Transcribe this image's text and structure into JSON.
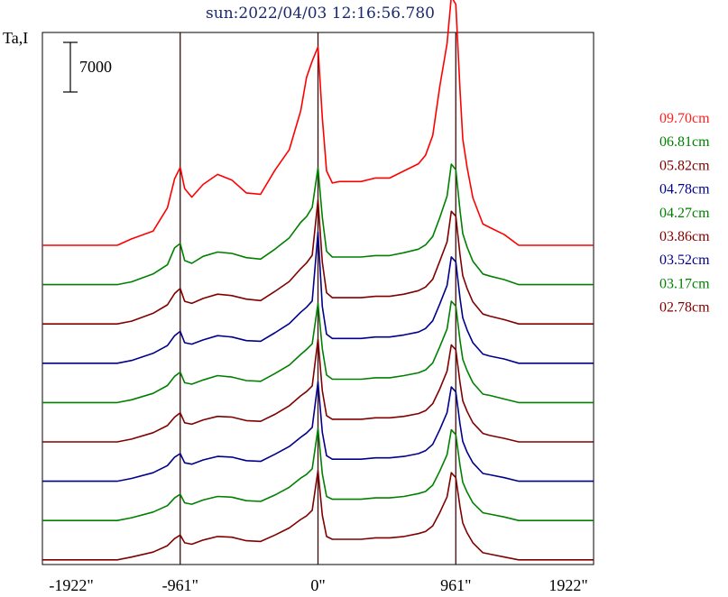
{
  "chart_data": {
    "type": "line",
    "title": "sun:2022/04/03 12:16:56.780",
    "ylabel": "Ta,I",
    "scale_bar_label": "7000",
    "scale_bar_value": 7000,
    "x_tick_labels": [
      "-1922\"",
      "-961\"",
      "0\"",
      "961\"",
      "1922\""
    ],
    "x_ticks": [
      -1922,
      -961,
      0,
      961,
      1922
    ],
    "xlim": [
      -1922,
      1922
    ],
    "vertical_markers": [
      -961,
      0,
      961
    ],
    "series": [
      {
        "name": "09.70cm",
        "color": "#ff0000",
        "baseline": 0,
        "x": [
          -1922,
          -1400,
          -1300,
          -1150,
          -1050,
          -1000,
          -961,
          -930,
          -880,
          -800,
          -700,
          -600,
          -500,
          -400,
          -300,
          -200,
          -120,
          -80,
          -40,
          0,
          30,
          60,
          100,
          150,
          200,
          300,
          400,
          500,
          600,
          700,
          750,
          800,
          850,
          900,
          930,
          961,
          990,
          1010,
          1040,
          1080,
          1150,
          1200,
          1300,
          1400,
          1922
        ],
        "y": [
          0,
          0,
          900,
          2000,
          5300,
          9400,
          11000,
          8000,
          6800,
          8600,
          10000,
          9200,
          7400,
          7200,
          10600,
          13500,
          19000,
          23700,
          26000,
          28000,
          18000,
          10500,
          8800,
          9000,
          9000,
          9000,
          9500,
          9500,
          10500,
          11500,
          12700,
          15500,
          22500,
          28500,
          35100,
          34000,
          22000,
          15000,
          11000,
          6700,
          3000,
          2500,
          1500,
          0,
          0
        ]
      },
      {
        "name": "06.81cm",
        "color": "#008000",
        "baseline": 1,
        "x": [
          -1922,
          -1400,
          -1300,
          -1150,
          -1050,
          -1000,
          -961,
          -930,
          -880,
          -800,
          -700,
          -600,
          -500,
          -400,
          -300,
          -200,
          -120,
          -80,
          -40,
          0,
          30,
          60,
          100,
          150,
          200,
          300,
          400,
          500,
          600,
          700,
          750,
          800,
          850,
          900,
          930,
          961,
          990,
          1010,
          1040,
          1080,
          1150,
          1200,
          1300,
          1400,
          1922
        ],
        "y": [
          0,
          0,
          400,
          1500,
          2800,
          5200,
          5800,
          3400,
          3000,
          4000,
          4600,
          4400,
          3800,
          3600,
          5000,
          6600,
          8800,
          9600,
          10900,
          16500,
          9500,
          4700,
          3900,
          3900,
          3900,
          3900,
          4100,
          4100,
          4500,
          5000,
          5600,
          6800,
          9500,
          12500,
          17000,
          16200,
          10500,
          7200,
          5300,
          3300,
          1500,
          1200,
          700,
          0,
          0
        ]
      },
      {
        "name": "05.82cm",
        "color": "#800000",
        "baseline": 2,
        "x": [
          -1922,
          -1400,
          -1300,
          -1150,
          -1050,
          -1000,
          -961,
          -930,
          -880,
          -800,
          -700,
          -600,
          -500,
          -400,
          -300,
          -200,
          -120,
          -80,
          -40,
          0,
          30,
          60,
          100,
          150,
          200,
          300,
          400,
          500,
          600,
          700,
          750,
          800,
          850,
          900,
          930,
          961,
          990,
          1010,
          1040,
          1080,
          1150,
          1200,
          1300,
          1400,
          1922
        ],
        "y": [
          0,
          0,
          400,
          1500,
          2700,
          4300,
          5000,
          3200,
          2900,
          3600,
          4200,
          4000,
          3500,
          3300,
          4600,
          6000,
          7800,
          8600,
          9700,
          17500,
          8700,
          4400,
          3700,
          3700,
          3700,
          3700,
          3900,
          3900,
          4200,
          4700,
          5200,
          6300,
          8900,
          11600,
          15900,
          15200,
          9800,
          6800,
          5000,
          3100,
          1400,
          1100,
          600,
          0,
          0
        ]
      },
      {
        "name": "04.78cm",
        "color": "#00008b",
        "baseline": 3,
        "x": [
          -1922,
          -1400,
          -1300,
          -1150,
          -1050,
          -1000,
          -961,
          -930,
          -880,
          -800,
          -700,
          -600,
          -500,
          -400,
          -300,
          -200,
          -120,
          -80,
          -40,
          0,
          30,
          60,
          100,
          150,
          200,
          300,
          400,
          500,
          600,
          700,
          750,
          800,
          850,
          900,
          930,
          961,
          990,
          1010,
          1040,
          1080,
          1150,
          1200,
          1300,
          1400,
          1922
        ],
        "y": [
          0,
          0,
          400,
          1400,
          2500,
          3900,
          4500,
          2900,
          2700,
          3300,
          3900,
          3700,
          3200,
          3100,
          4300,
          5600,
          7200,
          7900,
          8800,
          18500,
          8000,
          4100,
          3500,
          3500,
          3500,
          3500,
          3700,
          3700,
          4000,
          4400,
          4900,
          6000,
          8400,
          11000,
          15000,
          14300,
          9200,
          6400,
          4700,
          2900,
          1300,
          1000,
          600,
          0,
          0
        ]
      },
      {
        "name": "04.27cm",
        "color": "#008000",
        "baseline": 4,
        "x": [
          -1922,
          -1400,
          -1300,
          -1150,
          -1050,
          -1000,
          -961,
          -930,
          -880,
          -800,
          -700,
          -600,
          -500,
          -400,
          -300,
          -200,
          -120,
          -80,
          -40,
          0,
          30,
          60,
          100,
          150,
          200,
          300,
          400,
          500,
          600,
          700,
          750,
          800,
          850,
          900,
          930,
          961,
          990,
          1010,
          1040,
          1080,
          1150,
          1200,
          1300,
          1400,
          1922
        ],
        "y": [
          0,
          0,
          400,
          1300,
          2400,
          3700,
          4300,
          2800,
          2600,
          3200,
          3800,
          3600,
          3100,
          3000,
          4100,
          5300,
          6800,
          7500,
          8300,
          14000,
          7600,
          3900,
          3300,
          3300,
          3300,
          3300,
          3500,
          3500,
          3800,
          4200,
          4600,
          5600,
          7900,
          10400,
          14300,
          13600,
          8800,
          6100,
          4500,
          2800,
          1200,
          1000,
          500,
          0,
          0
        ]
      },
      {
        "name": "03.86cm",
        "color": "#800000",
        "baseline": 5,
        "x": [
          -1922,
          -1400,
          -1300,
          -1150,
          -1050,
          -1000,
          -961,
          -930,
          -880,
          -800,
          -700,
          -600,
          -500,
          -400,
          -300,
          -200,
          -120,
          -80,
          -40,
          0,
          30,
          60,
          100,
          150,
          200,
          300,
          400,
          500,
          600,
          700,
          750,
          800,
          850,
          900,
          930,
          961,
          990,
          1010,
          1040,
          1080,
          1150,
          1200,
          1300,
          1400,
          1922
        ],
        "y": [
          0,
          0,
          400,
          1300,
          2300,
          3500,
          4100,
          2700,
          2500,
          3100,
          3600,
          3500,
          3000,
          2900,
          3900,
          5100,
          6500,
          7100,
          7900,
          14500,
          7200,
          3700,
          3200,
          3200,
          3200,
          3200,
          3400,
          3400,
          3600,
          4000,
          4400,
          5400,
          7500,
          10000,
          13700,
          13000,
          8400,
          5800,
          4300,
          2700,
          1200,
          900,
          500,
          0,
          0
        ]
      },
      {
        "name": "03.52cm",
        "color": "#00008b",
        "baseline": 6,
        "x": [
          -1922,
          -1400,
          -1300,
          -1150,
          -1050,
          -1000,
          -961,
          -930,
          -880,
          -800,
          -700,
          -600,
          -500,
          -400,
          -300,
          -200,
          -120,
          -80,
          -40,
          0,
          30,
          60,
          100,
          150,
          200,
          300,
          400,
          500,
          600,
          700,
          750,
          800,
          850,
          900,
          930,
          961,
          990,
          1010,
          1040,
          1080,
          1150,
          1200,
          1300,
          1400,
          1922
        ],
        "y": [
          0,
          0,
          400,
          1200,
          2200,
          3400,
          3900,
          2600,
          2400,
          3000,
          3500,
          3400,
          2900,
          2800,
          3800,
          4900,
          6200,
          6800,
          7600,
          14000,
          6900,
          3600,
          3100,
          3100,
          3100,
          3100,
          3300,
          3300,
          3500,
          3900,
          4300,
          5200,
          7300,
          9700,
          13300,
          12600,
          8100,
          5600,
          4100,
          2600,
          1100,
          900,
          500,
          0,
          0
        ]
      },
      {
        "name": "03.17cm",
        "color": "#008000",
        "baseline": 7,
        "x": [
          -1922,
          -1400,
          -1300,
          -1150,
          -1050,
          -1000,
          -961,
          -930,
          -880,
          -800,
          -700,
          -600,
          -500,
          -400,
          -300,
          -200,
          -120,
          -80,
          -40,
          0,
          30,
          60,
          100,
          150,
          200,
          300,
          400,
          500,
          600,
          700,
          750,
          800,
          850,
          900,
          930,
          961,
          990,
          1010,
          1040,
          1080,
          1150,
          1200,
          1300,
          1400,
          1922
        ],
        "y": [
          0,
          0,
          400,
          1200,
          2100,
          3200,
          3700,
          2500,
          2300,
          2900,
          3400,
          3300,
          2800,
          2700,
          3600,
          4700,
          6000,
          6500,
          7300,
          13000,
          6600,
          3400,
          3000,
          3000,
          3000,
          3000,
          3200,
          3200,
          3400,
          3800,
          4100,
          5000,
          7000,
          9300,
          12800,
          12100,
          7800,
          5400,
          4000,
          2500,
          1100,
          900,
          500,
          0,
          0
        ]
      },
      {
        "name": "02.78cm",
        "color": "#800000",
        "baseline": 8,
        "x": [
          -1922,
          -1400,
          -1300,
          -1150,
          -1050,
          -1000,
          -961,
          -930,
          -880,
          -800,
          -700,
          -600,
          -500,
          -400,
          -300,
          -200,
          -120,
          -80,
          -40,
          0,
          30,
          60,
          100,
          150,
          200,
          300,
          400,
          500,
          600,
          700,
          750,
          800,
          850,
          900,
          930,
          961,
          990,
          1010,
          1040,
          1080,
          1150,
          1200,
          1300,
          1400,
          1922
        ],
        "y": [
          0,
          0,
          400,
          1100,
          2000,
          3000,
          3500,
          2400,
          2200,
          2800,
          3300,
          3200,
          2700,
          2600,
          3500,
          4500,
          5700,
          6200,
          7000,
          12600,
          6300,
          3300,
          2900,
          2900,
          2900,
          2900,
          3100,
          3100,
          3300,
          3700,
          4000,
          4800,
          6700,
          8900,
          12300,
          11600,
          7500,
          5200,
          3800,
          2400,
          1000,
          800,
          400,
          0,
          0
        ]
      }
    ],
    "grid": false,
    "legend_placement": "right"
  }
}
